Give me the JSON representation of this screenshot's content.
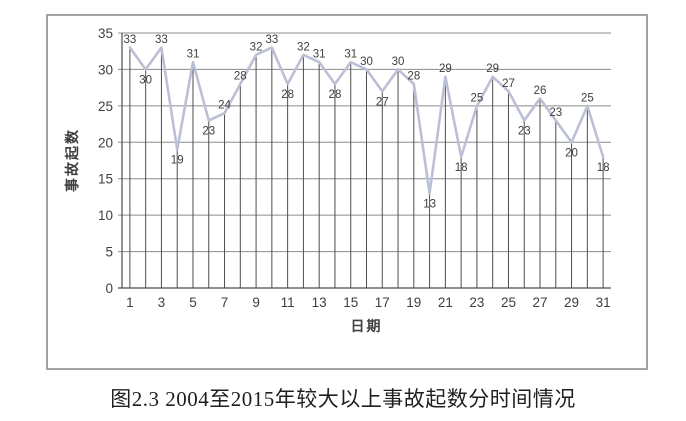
{
  "caption": "图2.3 2004至2015年较大以上事故起数分时间情况",
  "chart_data": {
    "type": "line",
    "title": "",
    "xlabel": "日期",
    "ylabel": "事故起数",
    "x": [
      1,
      2,
      3,
      4,
      5,
      6,
      7,
      8,
      9,
      10,
      11,
      12,
      13,
      14,
      15,
      16,
      17,
      18,
      19,
      20,
      21,
      22,
      23,
      24,
      25,
      26,
      27,
      28,
      29,
      30,
      31
    ],
    "values": [
      33,
      30,
      33,
      19,
      31,
      23,
      24,
      28,
      32,
      33,
      28,
      32,
      31,
      28,
      31,
      30,
      27,
      30,
      28,
      13,
      29,
      18,
      25,
      29,
      27,
      23,
      26,
      23,
      20,
      25,
      18
    ],
    "xticks": [
      1,
      3,
      5,
      7,
      9,
      11,
      13,
      15,
      17,
      19,
      21,
      23,
      25,
      27,
      29,
      31
    ],
    "yticks": [
      0,
      5,
      10,
      15,
      20,
      25,
      30,
      35
    ],
    "ylim": [
      0,
      35
    ],
    "grid": "horizontal",
    "drop_lines": true,
    "data_labels": true,
    "legend": "none",
    "colors": {
      "line": "#bcc0d6",
      "grid": "#8c8c8c",
      "axis": "#4d4d4d",
      "drop_line": "#4d4d4d",
      "text": "#3f3f3f",
      "frame": "#a3a3a3"
    }
  }
}
